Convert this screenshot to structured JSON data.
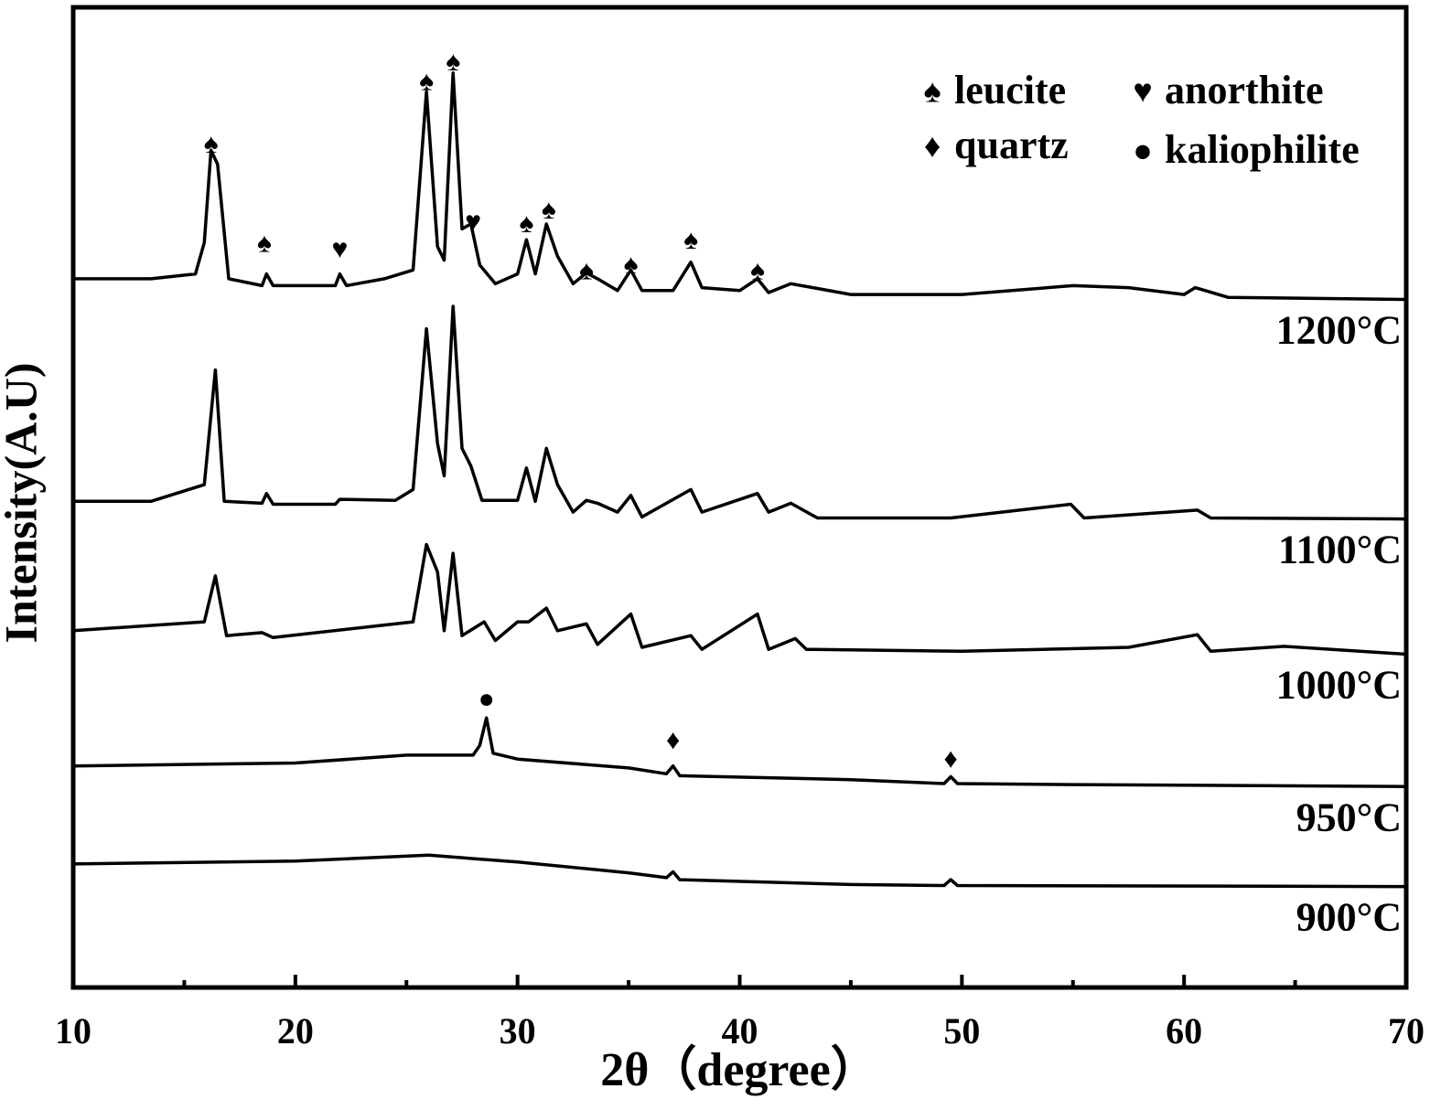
{
  "chart_data": {
    "type": "line",
    "xlabel": "2θ（degree）",
    "ylabel": "Intensity(A.U)",
    "xlim": [
      10,
      70
    ],
    "ylim": [
      0,
      100
    ],
    "xticks": [
      10,
      20,
      30,
      40,
      50,
      60,
      70
    ],
    "xminorticks": [
      15,
      25,
      35,
      45,
      55,
      65
    ],
    "grid": false,
    "legend": "upper right",
    "legend_items": [
      {
        "symbol": "♠",
        "label": "leucite"
      },
      {
        "symbol": "♥",
        "label": "anorthite"
      },
      {
        "symbol": "♦",
        "label": "quartz"
      },
      {
        "symbol": "●",
        "label": "kaliophilite"
      }
    ],
    "series": [
      {
        "name": "1200°C",
        "color": "#000000",
        "x": [
          10,
          13.5,
          15.5,
          15.9,
          16.2,
          16.5,
          17,
          18.5,
          18.7,
          19,
          21.8,
          22,
          22.3,
          24,
          25.3,
          25.9,
          26.4,
          26.7,
          27.1,
          27.5,
          27.9,
          28.3,
          29,
          30,
          30.4,
          30.8,
          31.3,
          31.8,
          32.5,
          33.1,
          33.6,
          34.5,
          35.1,
          35.6,
          37,
          37.8,
          38.3,
          40,
          40.8,
          41.3,
          42.3,
          43.3,
          45,
          50,
          55,
          57.5,
          60,
          60.5,
          62,
          70
        ],
        "values": [
          72.3,
          72.3,
          72.8,
          76.0,
          85.4,
          84.0,
          72.3,
          71.6,
          72.8,
          71.6,
          71.6,
          72.8,
          71.6,
          72.3,
          73.2,
          91.4,
          75.6,
          74.2,
          93.3,
          77.4,
          77.9,
          73.7,
          71.8,
          72.8,
          76.3,
          72.8,
          77.9,
          74.6,
          71.8,
          72.9,
          72.3,
          71.1,
          73.2,
          71.1,
          71.1,
          74.0,
          71.4,
          71.1,
          72.3,
          70.9,
          71.8,
          71.4,
          70.7,
          70.7,
          71.6,
          71.4,
          70.7,
          71.4,
          70.4,
          70.2
        ]
      },
      {
        "name": "1100°C",
        "color": "#000000",
        "x": [
          10,
          13.5,
          15.9,
          16.4,
          16.8,
          18.5,
          18.7,
          19,
          21.8,
          22,
          24.5,
          25.3,
          25.9,
          26.4,
          26.7,
          27.1,
          27.5,
          27.9,
          28.4,
          30,
          30.4,
          30.8,
          31.3,
          31.8,
          32.5,
          33.1,
          33.6,
          34.5,
          35.1,
          35.6,
          37.8,
          38.3,
          40.8,
          41.3,
          42.3,
          43.5,
          49.5,
          54.9,
          55.5,
          60.6,
          61.2,
          70
        ],
        "values": [
          49.6,
          49.6,
          51.3,
          63.0,
          49.6,
          49.4,
          50.4,
          49.3,
          49.3,
          49.8,
          49.7,
          50.8,
          67.2,
          55.5,
          52.2,
          69.5,
          55.0,
          53.2,
          49.7,
          49.7,
          53.0,
          49.6,
          55.0,
          51.3,
          48.5,
          49.7,
          49.4,
          48.5,
          50.2,
          48.0,
          50.8,
          48.5,
          50.4,
          48.5,
          49.4,
          47.9,
          47.9,
          49.3,
          47.9,
          48.7,
          47.9,
          47.8
        ]
      },
      {
        "name": "1000°C",
        "color": "#000000",
        "x": [
          10,
          15.9,
          16.4,
          16.9,
          18.5,
          19,
          25.3,
          25.9,
          26.4,
          26.7,
          27.1,
          27.5,
          28.5,
          29,
          30,
          30.5,
          31.3,
          31.8,
          33.1,
          33.6,
          35.1,
          35.6,
          37.8,
          38.3,
          40.8,
          41.3,
          42.5,
          43,
          50,
          57.5,
          60.6,
          61.2,
          64.5,
          70
        ],
        "values": [
          36.4,
          37.3,
          42.0,
          35.9,
          36.2,
          35.7,
          37.3,
          45.2,
          42.4,
          36.4,
          44.3,
          35.9,
          37.3,
          35.4,
          37.3,
          37.3,
          38.7,
          36.4,
          37.1,
          35.0,
          38.1,
          34.7,
          35.9,
          34.5,
          38.1,
          34.5,
          35.6,
          34.5,
          34.3,
          34.7,
          36.0,
          34.3,
          34.8,
          34.0
        ]
      },
      {
        "name": "950°C",
        "color": "#000000",
        "x": [
          10,
          20,
          25,
          28,
          28.3,
          28.6,
          28.9,
          30,
          35,
          36.7,
          37,
          37.3,
          45,
          49.2,
          49.5,
          49.8,
          55,
          70
        ],
        "values": [
          22.6,
          22.9,
          23.7,
          23.7,
          24.7,
          27.5,
          23.9,
          23.3,
          22.4,
          21.8,
          22.6,
          21.6,
          21.2,
          20.8,
          21.5,
          20.8,
          20.7,
          20.5
        ]
      },
      {
        "name": "900°C",
        "color": "#000000",
        "x": [
          10,
          20,
          26,
          30,
          35,
          36.7,
          37,
          37.3,
          45,
          49.2,
          49.5,
          49.8,
          70
        ],
        "values": [
          12.6,
          12.9,
          13.5,
          12.8,
          11.7,
          11.2,
          11.8,
          11.0,
          10.5,
          10.4,
          11.0,
          10.4,
          10.3
        ]
      }
    ],
    "annotations": [
      {
        "text": "♠",
        "x": 16.2,
        "y": 85.8
      },
      {
        "text": "♠",
        "x": 18.6,
        "y": 75.7
      },
      {
        "text": "♥",
        "x": 22.0,
        "y": 75.1
      },
      {
        "text": "♠",
        "x": 25.9,
        "y": 92.2
      },
      {
        "text": "♠",
        "x": 27.1,
        "y": 94.2
      },
      {
        "text": "♥",
        "x": 28.0,
        "y": 77.9
      },
      {
        "text": "♠",
        "x": 30.4,
        "y": 77.7
      },
      {
        "text": "♠",
        "x": 31.4,
        "y": 79.1
      },
      {
        "text": "♠",
        "x": 33.1,
        "y": 72.9
      },
      {
        "text": "♠",
        "x": 35.1,
        "y": 73.5
      },
      {
        "text": "♠",
        "x": 37.8,
        "y": 76.0
      },
      {
        "text": "♠",
        "x": 40.8,
        "y": 72.9
      },
      {
        "text": "●",
        "x": 28.6,
        "y": 29.2
      },
      {
        "text": "♦",
        "x": 37.0,
        "y": 25.0
      },
      {
        "text": "♦",
        "x": 49.5,
        "y": 23.1
      }
    ]
  }
}
